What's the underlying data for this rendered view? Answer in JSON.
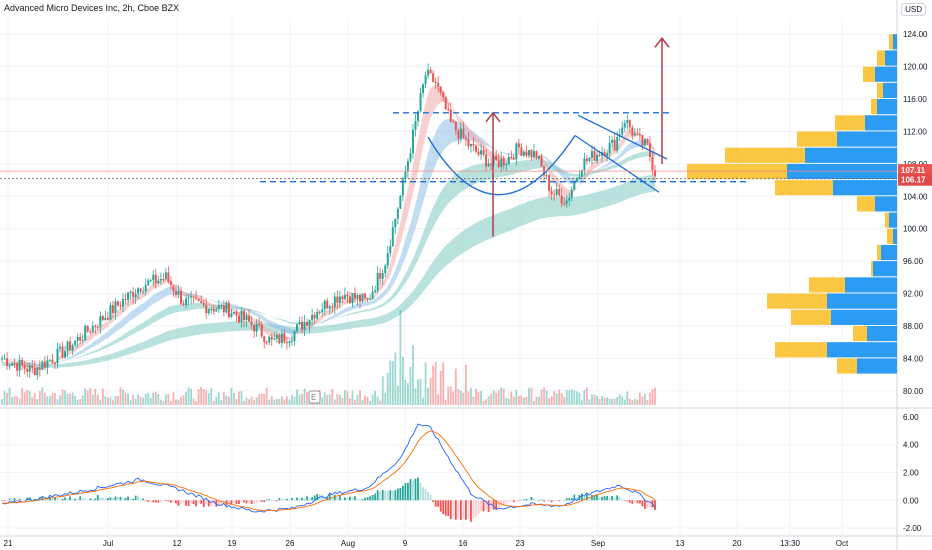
{
  "header": {
    "title": "Advanced Micro Devices Inc, 2h, Cboe BZX",
    "currency": "USD"
  },
  "colors": {
    "up": "#26a69a",
    "down": "#ef5350",
    "pattern": "#1e6fd9",
    "arrow": "#b03a48",
    "ma_teal": "#80cbc4",
    "ma_blue": "#90bfe8",
    "ma_red": "#f2a9a8",
    "vp_up": "#2196f3",
    "vp_down": "#fbc02d",
    "price_line": "#f48b8b"
  },
  "price_axis": {
    "ticks": [
      "124.00",
      "120.00",
      "116.00",
      "112.00",
      "108.00",
      "104.00",
      "100.00",
      "96.00",
      "92.00",
      "88.00",
      "84.00",
      "80.00"
    ],
    "last_label": "107.11",
    "current_label": "106.17"
  },
  "macd_axis": {
    "ticks": [
      "6.00",
      "4.00",
      "2.00",
      "0.00",
      "-2.00"
    ]
  },
  "time_axis": {
    "ticks": [
      "21",
      "Jul",
      "12",
      "19",
      "26",
      "Aug",
      "9",
      "16",
      "23",
      "Sep",
      "13",
      "20",
      "13:30",
      "Oct"
    ]
  },
  "chart_data": {
    "type": "candlestick",
    "title": "Advanced Micro Devices Inc, 2h, Cboe BZX",
    "ylim": [
      78,
      126
    ],
    "series": [
      {
        "name": "price",
        "x": [
          "21",
          "Jul",
          "12",
          "19",
          "26",
          "Aug",
          "9",
          "16",
          "23",
          "Sep"
        ],
        "close": [
          84,
          92,
          90,
          86,
          90,
          121,
          108,
          110,
          103,
          110
        ]
      }
    ],
    "last_price": 107.11,
    "current_price": 106.17,
    "horizontal_levels": [
      114.3,
      105.8
    ],
    "macd": {
      "ylim": [
        -2.5,
        6.5
      ]
    }
  }
}
